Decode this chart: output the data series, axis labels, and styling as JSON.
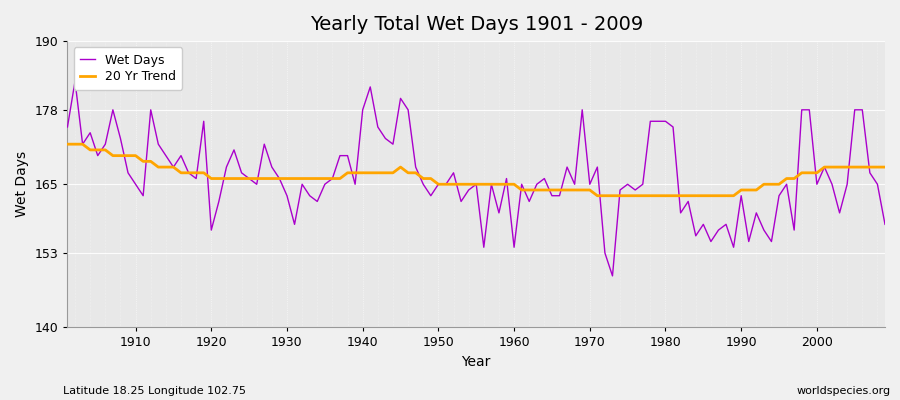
{
  "title": "Yearly Total Wet Days 1901 - 2009",
  "xlabel": "Year",
  "ylabel": "Wet Days",
  "xlim": [
    1901,
    2009
  ],
  "ylim": [
    140,
    190
  ],
  "yticks": [
    140,
    153,
    165,
    178,
    190
  ],
  "xticks": [
    1910,
    1920,
    1930,
    1940,
    1950,
    1960,
    1970,
    1980,
    1990,
    2000
  ],
  "bg_color": "#f0f0f0",
  "plot_bg_color": "#e8e8e8",
  "wet_days_color": "#aa00cc",
  "trend_color": "#ffa500",
  "caption_left": "Latitude 18.25 Longitude 102.75",
  "caption_right": "worldspecies.org",
  "years": [
    1901,
    1902,
    1903,
    1904,
    1905,
    1906,
    1907,
    1908,
    1909,
    1910,
    1911,
    1912,
    1913,
    1914,
    1915,
    1916,
    1917,
    1918,
    1919,
    1920,
    1921,
    1922,
    1923,
    1924,
    1925,
    1926,
    1927,
    1928,
    1929,
    1930,
    1931,
    1932,
    1933,
    1934,
    1935,
    1936,
    1937,
    1938,
    1939,
    1940,
    1941,
    1942,
    1943,
    1944,
    1945,
    1946,
    1947,
    1948,
    1949,
    1950,
    1951,
    1952,
    1953,
    1954,
    1955,
    1956,
    1957,
    1958,
    1959,
    1960,
    1961,
    1962,
    1963,
    1964,
    1965,
    1966,
    1967,
    1968,
    1969,
    1970,
    1971,
    1972,
    1973,
    1974,
    1975,
    1976,
    1977,
    1978,
    1979,
    1980,
    1981,
    1982,
    1983,
    1984,
    1985,
    1986,
    1987,
    1988,
    1989,
    1990,
    1991,
    1992,
    1993,
    1994,
    1995,
    1996,
    1997,
    1998,
    1999,
    2000,
    2001,
    2002,
    2003,
    2004,
    2005,
    2006,
    2007,
    2008,
    2009
  ],
  "wet_days": [
    175,
    183,
    172,
    174,
    170,
    172,
    178,
    173,
    167,
    165,
    163,
    178,
    172,
    170,
    168,
    170,
    167,
    166,
    176,
    157,
    162,
    168,
    171,
    167,
    166,
    165,
    172,
    168,
    166,
    163,
    158,
    165,
    163,
    162,
    165,
    166,
    170,
    170,
    165,
    178,
    182,
    175,
    173,
    172,
    180,
    178,
    168,
    165,
    163,
    165,
    165,
    167,
    162,
    164,
    165,
    154,
    165,
    160,
    166,
    154,
    165,
    162,
    165,
    166,
    163,
    163,
    168,
    165,
    178,
    165,
    168,
    153,
    149,
    164,
    165,
    164,
    165,
    176,
    176,
    176,
    175,
    160,
    162,
    156,
    158,
    155,
    157,
    158,
    154,
    163,
    155,
    160,
    157,
    155,
    163,
    165,
    157,
    178,
    178,
    165,
    168,
    165,
    160,
    165,
    178,
    178,
    167,
    165,
    158
  ],
  "trend_years": [
    1901,
    1902,
    1903,
    1904,
    1905,
    1906,
    1907,
    1908,
    1909,
    1910,
    1911,
    1912,
    1913,
    1914,
    1915,
    1916,
    1917,
    1918,
    1919,
    1920,
    1921,
    1922,
    1923,
    1924,
    1925,
    1926,
    1927,
    1928,
    1929,
    1930,
    1931,
    1932,
    1933,
    1934,
    1935,
    1936,
    1937,
    1938,
    1939,
    1940,
    1941,
    1942,
    1943,
    1944,
    1945,
    1946,
    1947,
    1948,
    1949,
    1950,
    1951,
    1952,
    1953,
    1954,
    1955,
    1956,
    1957,
    1958,
    1959,
    1960,
    1961,
    1962,
    1963,
    1964,
    1965,
    1966,
    1967,
    1968,
    1969,
    1970,
    1971,
    1972,
    1973,
    1974,
    1975,
    1976,
    1977,
    1978,
    1979,
    1980,
    1981,
    1982,
    1983,
    1984,
    1985,
    1986,
    1987,
    1988,
    1989,
    1990,
    1991,
    1992,
    1993,
    1994,
    1995,
    1996,
    1997,
    1998,
    1999,
    2000,
    2001,
    2002,
    2003,
    2004,
    2005,
    2006,
    2007,
    2008,
    2009
  ],
  "trend_values": [
    172,
    172,
    172,
    171,
    171,
    171,
    170,
    170,
    170,
    170,
    169,
    169,
    168,
    168,
    168,
    167,
    167,
    167,
    167,
    166,
    166,
    166,
    166,
    166,
    166,
    166,
    166,
    166,
    166,
    166,
    166,
    166,
    166,
    166,
    166,
    166,
    166,
    167,
    167,
    167,
    167,
    167,
    167,
    167,
    168,
    167,
    167,
    166,
    166,
    165,
    165,
    165,
    165,
    165,
    165,
    165,
    165,
    165,
    165,
    165,
    164,
    164,
    164,
    164,
    164,
    164,
    164,
    164,
    164,
    164,
    163,
    163,
    163,
    163,
    163,
    163,
    163,
    163,
    163,
    163,
    163,
    163,
    163,
    163,
    163,
    163,
    163,
    163,
    163,
    164,
    164,
    164,
    165,
    165,
    165,
    166,
    166,
    167,
    167,
    167,
    168,
    168,
    168,
    168,
    168,
    168,
    168,
    168,
    168
  ]
}
